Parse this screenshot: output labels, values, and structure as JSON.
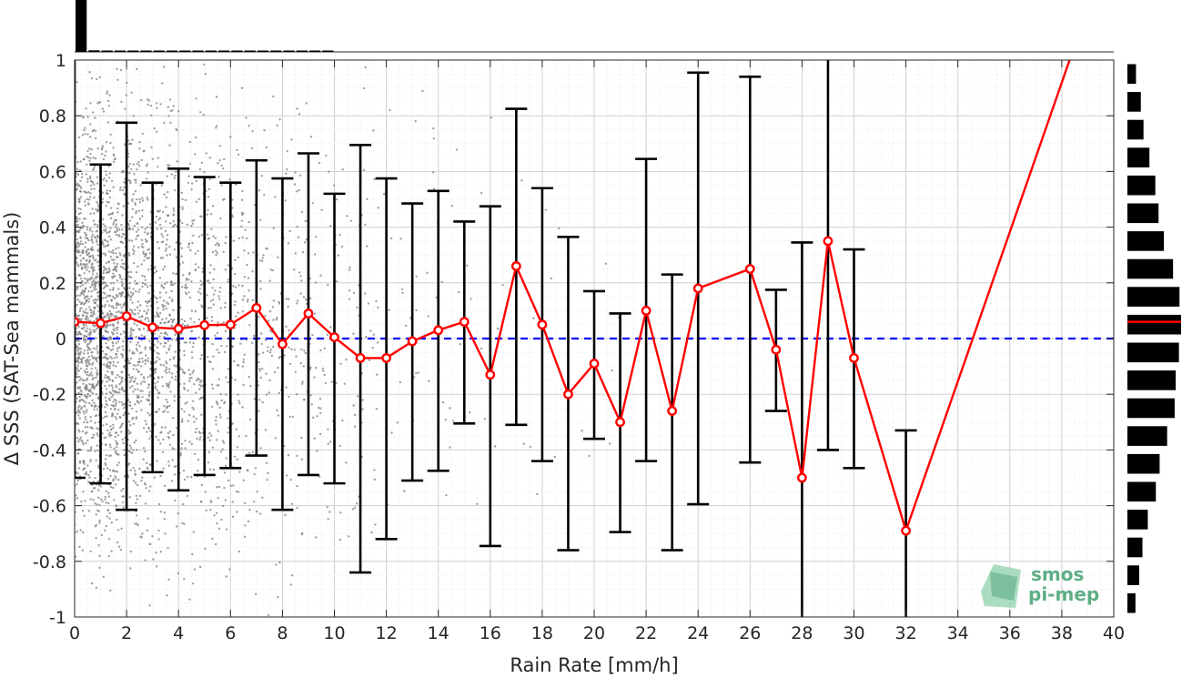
{
  "chart_data": {
    "type": "line",
    "xlabel": "Rain Rate [mm/h]",
    "ylabel": "Δ SSS (SAT-Sea mammals)",
    "xlim": [
      0,
      40
    ],
    "ylim": [
      -1,
      1
    ],
    "x_ticks": [
      0,
      2,
      4,
      6,
      8,
      10,
      12,
      14,
      16,
      18,
      20,
      22,
      24,
      26,
      28,
      30,
      32,
      34,
      36,
      38,
      40
    ],
    "y_ticks": [
      -1,
      -0.8,
      -0.6,
      -0.4,
      -0.2,
      0,
      0.2,
      0.4,
      0.6,
      0.8,
      1
    ],
    "y_tick_labels": [
      "-1",
      "-0.8",
      "-0.6",
      "-0.4",
      "-0.2",
      "0",
      "0.2",
      "0.4",
      "0.6",
      "0.8",
      "1"
    ],
    "grid": true,
    "series": [
      {
        "style": "red line with markers and black error bars",
        "color": "#ff0000",
        "x": [
          0,
          1,
          2,
          3,
          4,
          5,
          6,
          7,
          8,
          9,
          10,
          11,
          12,
          13,
          14,
          15,
          16,
          17,
          18,
          19,
          20,
          21,
          22,
          23,
          24,
          26,
          27,
          28,
          29,
          30,
          32
        ],
        "y": [
          0.06,
          0.055,
          0.08,
          0.04,
          0.035,
          0.048,
          0.05,
          0.11,
          -0.02,
          0.09,
          0.005,
          -0.07,
          -0.07,
          -0.01,
          0.03,
          0.06,
          -0.13,
          0.26,
          0.05,
          -0.2,
          -0.09,
          -0.3,
          0.1,
          -0.26,
          0.18,
          0.25,
          -0.04,
          -0.5,
          0.35,
          -0.07,
          -0.69
        ],
        "err_upper": [
          1.55,
          0.625,
          0.775,
          0.56,
          0.61,
          0.58,
          0.56,
          0.64,
          0.575,
          0.665,
          0.52,
          0.695,
          0.575,
          0.485,
          0.53,
          0.42,
          0.475,
          0.825,
          0.54,
          0.365,
          0.17,
          0.09,
          0.645,
          0.23,
          0.955,
          0.94,
          0.175,
          0.345,
          1.2,
          0.32,
          -0.33
        ],
        "err_lower": [
          -0.5,
          -0.52,
          -0.615,
          -0.48,
          -0.545,
          -0.49,
          -0.465,
          -0.42,
          -0.615,
          -0.49,
          -0.52,
          -0.84,
          -0.72,
          -0.51,
          -0.475,
          -0.305,
          -0.745,
          -0.31,
          -0.44,
          -0.76,
          -0.36,
          -0.695,
          -0.44,
          -0.76,
          -0.595,
          -0.445,
          -0.26,
          -1.2,
          -0.4,
          -0.465,
          -1.2
        ]
      },
      {
        "style": "red line extension",
        "color": "#ff0000",
        "x": [
          32,
          38.3
        ],
        "y": [
          -0.69,
          1.0
        ]
      },
      {
        "style": "blue dashed zero line",
        "color": "#0000ff",
        "x": [
          0,
          40
        ],
        "y": [
          0,
          0
        ]
      }
    ],
    "scatter_background": {
      "color": "#808080",
      "note": "dense grey scatter of individual matchups, decreasing with rain rate"
    },
    "top_histogram": {
      "bins_x": [
        0.25,
        0.75,
        1.25,
        1.75,
        2.25,
        2.75,
        3.25,
        3.75,
        4.25,
        4.75,
        5.25,
        5.75,
        6.25,
        6.75,
        7.25,
        7.75,
        8.25,
        8.75,
        9.25,
        9.75
      ],
      "values": [
        1.0,
        0.03,
        0.02,
        0.02,
        0.015,
        0.015,
        0.012,
        0.012,
        0.01,
        0.01,
        0.01,
        0.008,
        0.008,
        0.008,
        0.006,
        0.006,
        0.005,
        0.005,
        0.004,
        0.004
      ]
    },
    "right_histogram": {
      "bins_y": [
        0.95,
        0.85,
        0.75,
        0.65,
        0.55,
        0.45,
        0.35,
        0.25,
        0.15,
        0.05,
        -0.05,
        -0.15,
        -0.25,
        -0.35,
        -0.45,
        -0.55,
        -0.65,
        -0.75,
        -0.85,
        -0.95
      ],
      "values": [
        0.16,
        0.25,
        0.3,
        0.41,
        0.52,
        0.58,
        0.68,
        0.85,
        0.97,
        1.0,
        0.96,
        0.9,
        0.88,
        0.74,
        0.6,
        0.53,
        0.38,
        0.28,
        0.22,
        0.15
      ],
      "median": 0.06,
      "median_color": "#ff0000"
    },
    "logo": {
      "line1": "smos",
      "line2": "pi-mep"
    }
  }
}
